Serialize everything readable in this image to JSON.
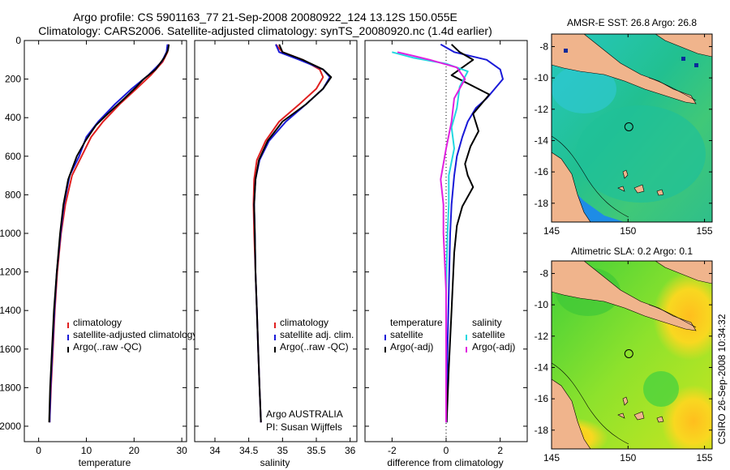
{
  "header": {
    "line1": "Argo profile: CS 5901163_77 21-Sep-2008 20080922_124 13.12S 150.055E",
    "line2": "Climatology: CARS2006. Satellite-adjusted climatology: synTS_20080920.nc (1.4d earlier)"
  },
  "colors": {
    "climatology": "#e02020",
    "satellite": "#1a1ad8",
    "argo": "#000000",
    "sal_satellite": "#22d8e0",
    "sal_argo": "#e020e0",
    "land": "#f0b48c"
  },
  "chart_data": [
    {
      "type": "line",
      "id": "temperature",
      "xlabel": "temperature",
      "ylabel": "",
      "xlim": [
        -3,
        31
      ],
      "ylim": [
        2080,
        0
      ],
      "xticks": [
        "0",
        "10",
        "20",
        "30"
      ],
      "yticks": [
        "0",
        "200",
        "400",
        "600",
        "800",
        "1000",
        "1200",
        "1400",
        "1600",
        "1800",
        "2000"
      ],
      "legend": [
        "climatology",
        "satellite-adjusted climatology",
        "Argo(..raw -QC)"
      ],
      "series": [
        {
          "name": "climatology",
          "color_key": "climatology",
          "x": [
            27.2,
            27.0,
            26.0,
            23.5,
            20.5,
            17.0,
            13.5,
            11.0,
            9.0,
            7.0,
            5.6,
            4.7,
            3.9,
            3.4,
            3.0,
            2.6,
            2.3
          ],
          "y": [
            20,
            60,
            110,
            180,
            250,
            330,
            420,
            500,
            600,
            700,
            850,
            1000,
            1200,
            1400,
            1600,
            1800,
            1980
          ]
        },
        {
          "name": "satellite-adjusted climatology",
          "color_key": "satellite",
          "x": [
            27.0,
            26.8,
            25.8,
            23.0,
            19.5,
            16.0,
            12.5,
            10.0,
            8.5,
            6.5,
            5.3,
            4.6,
            3.8,
            3.3,
            2.9,
            2.5,
            2.3
          ],
          "y": [
            20,
            60,
            110,
            180,
            250,
            330,
            420,
            500,
            600,
            700,
            850,
            1000,
            1200,
            1400,
            1600,
            1800,
            1980
          ]
        },
        {
          "name": "Argo(..raw -QC)",
          "color_key": "argo",
          "x": [
            27.3,
            27.1,
            26.3,
            24.5,
            22.0,
            20.5,
            18.0,
            14.5,
            12.0,
            9.8,
            8.0,
            6.2,
            5.2,
            4.5,
            3.8,
            3.2,
            2.8,
            2.4,
            2.2
          ],
          "y": [
            20,
            50,
            90,
            150,
            200,
            240,
            300,
            380,
            440,
            520,
            600,
            720,
            850,
            1000,
            1200,
            1400,
            1600,
            1800,
            1980
          ]
        }
      ]
    },
    {
      "type": "line",
      "id": "salinity",
      "xlabel": "salinity",
      "xlim": [
        33.7,
        36.1
      ],
      "ylim": [
        2080,
        0
      ],
      "xticks": [
        "34",
        "34.5",
        "35",
        "35.5",
        "36"
      ],
      "legend": [
        "climatology",
        "satellite adj. clim.",
        "Argo(..raw -QC)"
      ],
      "annotation": [
        "Argo AUSTRALIA",
        "PI: Susan Wijffels"
      ],
      "series": [
        {
          "name": "climatology",
          "color_key": "climatology",
          "x": [
            34.9,
            35.0,
            35.3,
            35.55,
            35.6,
            35.5,
            35.25,
            34.95,
            34.75,
            34.62,
            34.58,
            34.57,
            34.58,
            34.6,
            34.62,
            34.64,
            34.66,
            34.68
          ],
          "y": [
            20,
            60,
            100,
            150,
            190,
            250,
            330,
            420,
            520,
            620,
            720,
            850,
            1000,
            1200,
            1400,
            1600,
            1800,
            1980
          ]
        },
        {
          "name": "satellite adj. clim.",
          "color_key": "satellite",
          "x": [
            34.9,
            34.95,
            35.25,
            35.6,
            35.7,
            35.6,
            35.35,
            35.05,
            34.8,
            34.66,
            34.6,
            34.58,
            34.59,
            34.6,
            34.62,
            34.64,
            34.66,
            34.68
          ],
          "y": [
            20,
            60,
            100,
            150,
            190,
            250,
            330,
            420,
            520,
            620,
            720,
            850,
            1000,
            1200,
            1400,
            1600,
            1800,
            1980
          ]
        },
        {
          "name": "Argo(..raw -QC)",
          "color_key": "argo",
          "x": [
            34.95,
            35.0,
            35.3,
            35.6,
            35.72,
            35.6,
            35.35,
            35.0,
            34.78,
            34.65,
            34.6,
            34.58,
            34.59,
            34.6,
            34.62,
            34.64,
            34.66,
            34.68
          ],
          "y": [
            20,
            60,
            100,
            150,
            190,
            250,
            330,
            420,
            520,
            620,
            720,
            850,
            1000,
            1200,
            1400,
            1600,
            1800,
            1980
          ]
        }
      ]
    },
    {
      "type": "line",
      "id": "difference",
      "xlabel": "difference from climatology",
      "xlim": [
        -3,
        3
      ],
      "ylim": [
        2080,
        0
      ],
      "xticks": [
        "-2",
        "0",
        "2"
      ],
      "legend": [
        "temperature",
        "satellite",
        "Argo(-adj)",
        "salinity",
        "satellite",
        "Argo(-adj)"
      ],
      "series": [
        {
          "name": "temperature satellite",
          "color_key": "satellite",
          "x": [
            -0.2,
            0.3,
            1.5,
            2.0,
            2.1,
            1.8,
            1.5,
            1.1,
            0.8,
            0.6,
            0.4,
            0.3,
            0.2,
            0.15,
            0.1,
            0.05,
            0.02
          ],
          "y": [
            20,
            60,
            100,
            150,
            200,
            250,
            300,
            350,
            420,
            500,
            600,
            700,
            850,
            1000,
            1300,
            1600,
            1980
          ]
        },
        {
          "name": "temperature Argo(-adj)",
          "color_key": "argo",
          "x": [
            0.2,
            0.5,
            1.0,
            0.6,
            0.2,
            1.6,
            1.0,
            1.2,
            0.9,
            0.7,
            0.8,
            1.0,
            0.6,
            0.4,
            0.3,
            0.2,
            0.1,
            0.02
          ],
          "y": [
            20,
            60,
            100,
            140,
            180,
            280,
            380,
            470,
            550,
            640,
            700,
            760,
            860,
            960,
            1100,
            1400,
            1700,
            1980
          ]
        },
        {
          "name": "salinity satellite",
          "color_key": "sal_satellite",
          "x": [
            -2.0,
            -1.2,
            0.0,
            0.8,
            0.5,
            0.4,
            0.2,
            0.3,
            0.1,
            0.1,
            0.05,
            0.0,
            0.0,
            0.0
          ],
          "y": [
            60,
            90,
            120,
            160,
            240,
            350,
            450,
            560,
            700,
            850,
            1000,
            1300,
            1600,
            1980
          ]
        },
        {
          "name": "salinity Argo(-adj)",
          "color_key": "sal_argo",
          "x": [
            -1.8,
            -0.6,
            0.4,
            0.7,
            0.3,
            0.2,
            0.0,
            -0.2,
            -0.1,
            -0.1,
            0.0,
            0.0,
            0.0
          ],
          "y": [
            60,
            100,
            140,
            200,
            300,
            420,
            560,
            720,
            850,
            1000,
            1300,
            1600,
            1980
          ]
        }
      ]
    },
    {
      "type": "heatmap",
      "id": "sst-map",
      "title": "AMSR-E SST: 26.8 Argo: 26.8",
      "xlim": [
        145,
        155.5
      ],
      "ylim": [
        -19.2,
        -7.2
      ],
      "xticks": [
        "145",
        "150",
        "155"
      ],
      "yticks": [
        "-8",
        "-10",
        "-12",
        "-14",
        "-16",
        "-18"
      ],
      "marker": {
        "lon": 150.055,
        "lat": -13.12
      }
    },
    {
      "type": "heatmap",
      "id": "sla-map",
      "title": "Altimetric SLA: 0.2 Argo: 0.1",
      "xlim": [
        145,
        155.5
      ],
      "ylim": [
        -19.2,
        -7.2
      ],
      "xticks": [
        "145",
        "150",
        "155"
      ],
      "yticks": [
        "-8",
        "-10",
        "-12",
        "-14",
        "-16",
        "-18"
      ],
      "marker": {
        "lon": 150.055,
        "lat": -13.12
      }
    }
  ],
  "footer": {
    "credit": "CSIRO 26-Sep-2008 10:34:32"
  }
}
